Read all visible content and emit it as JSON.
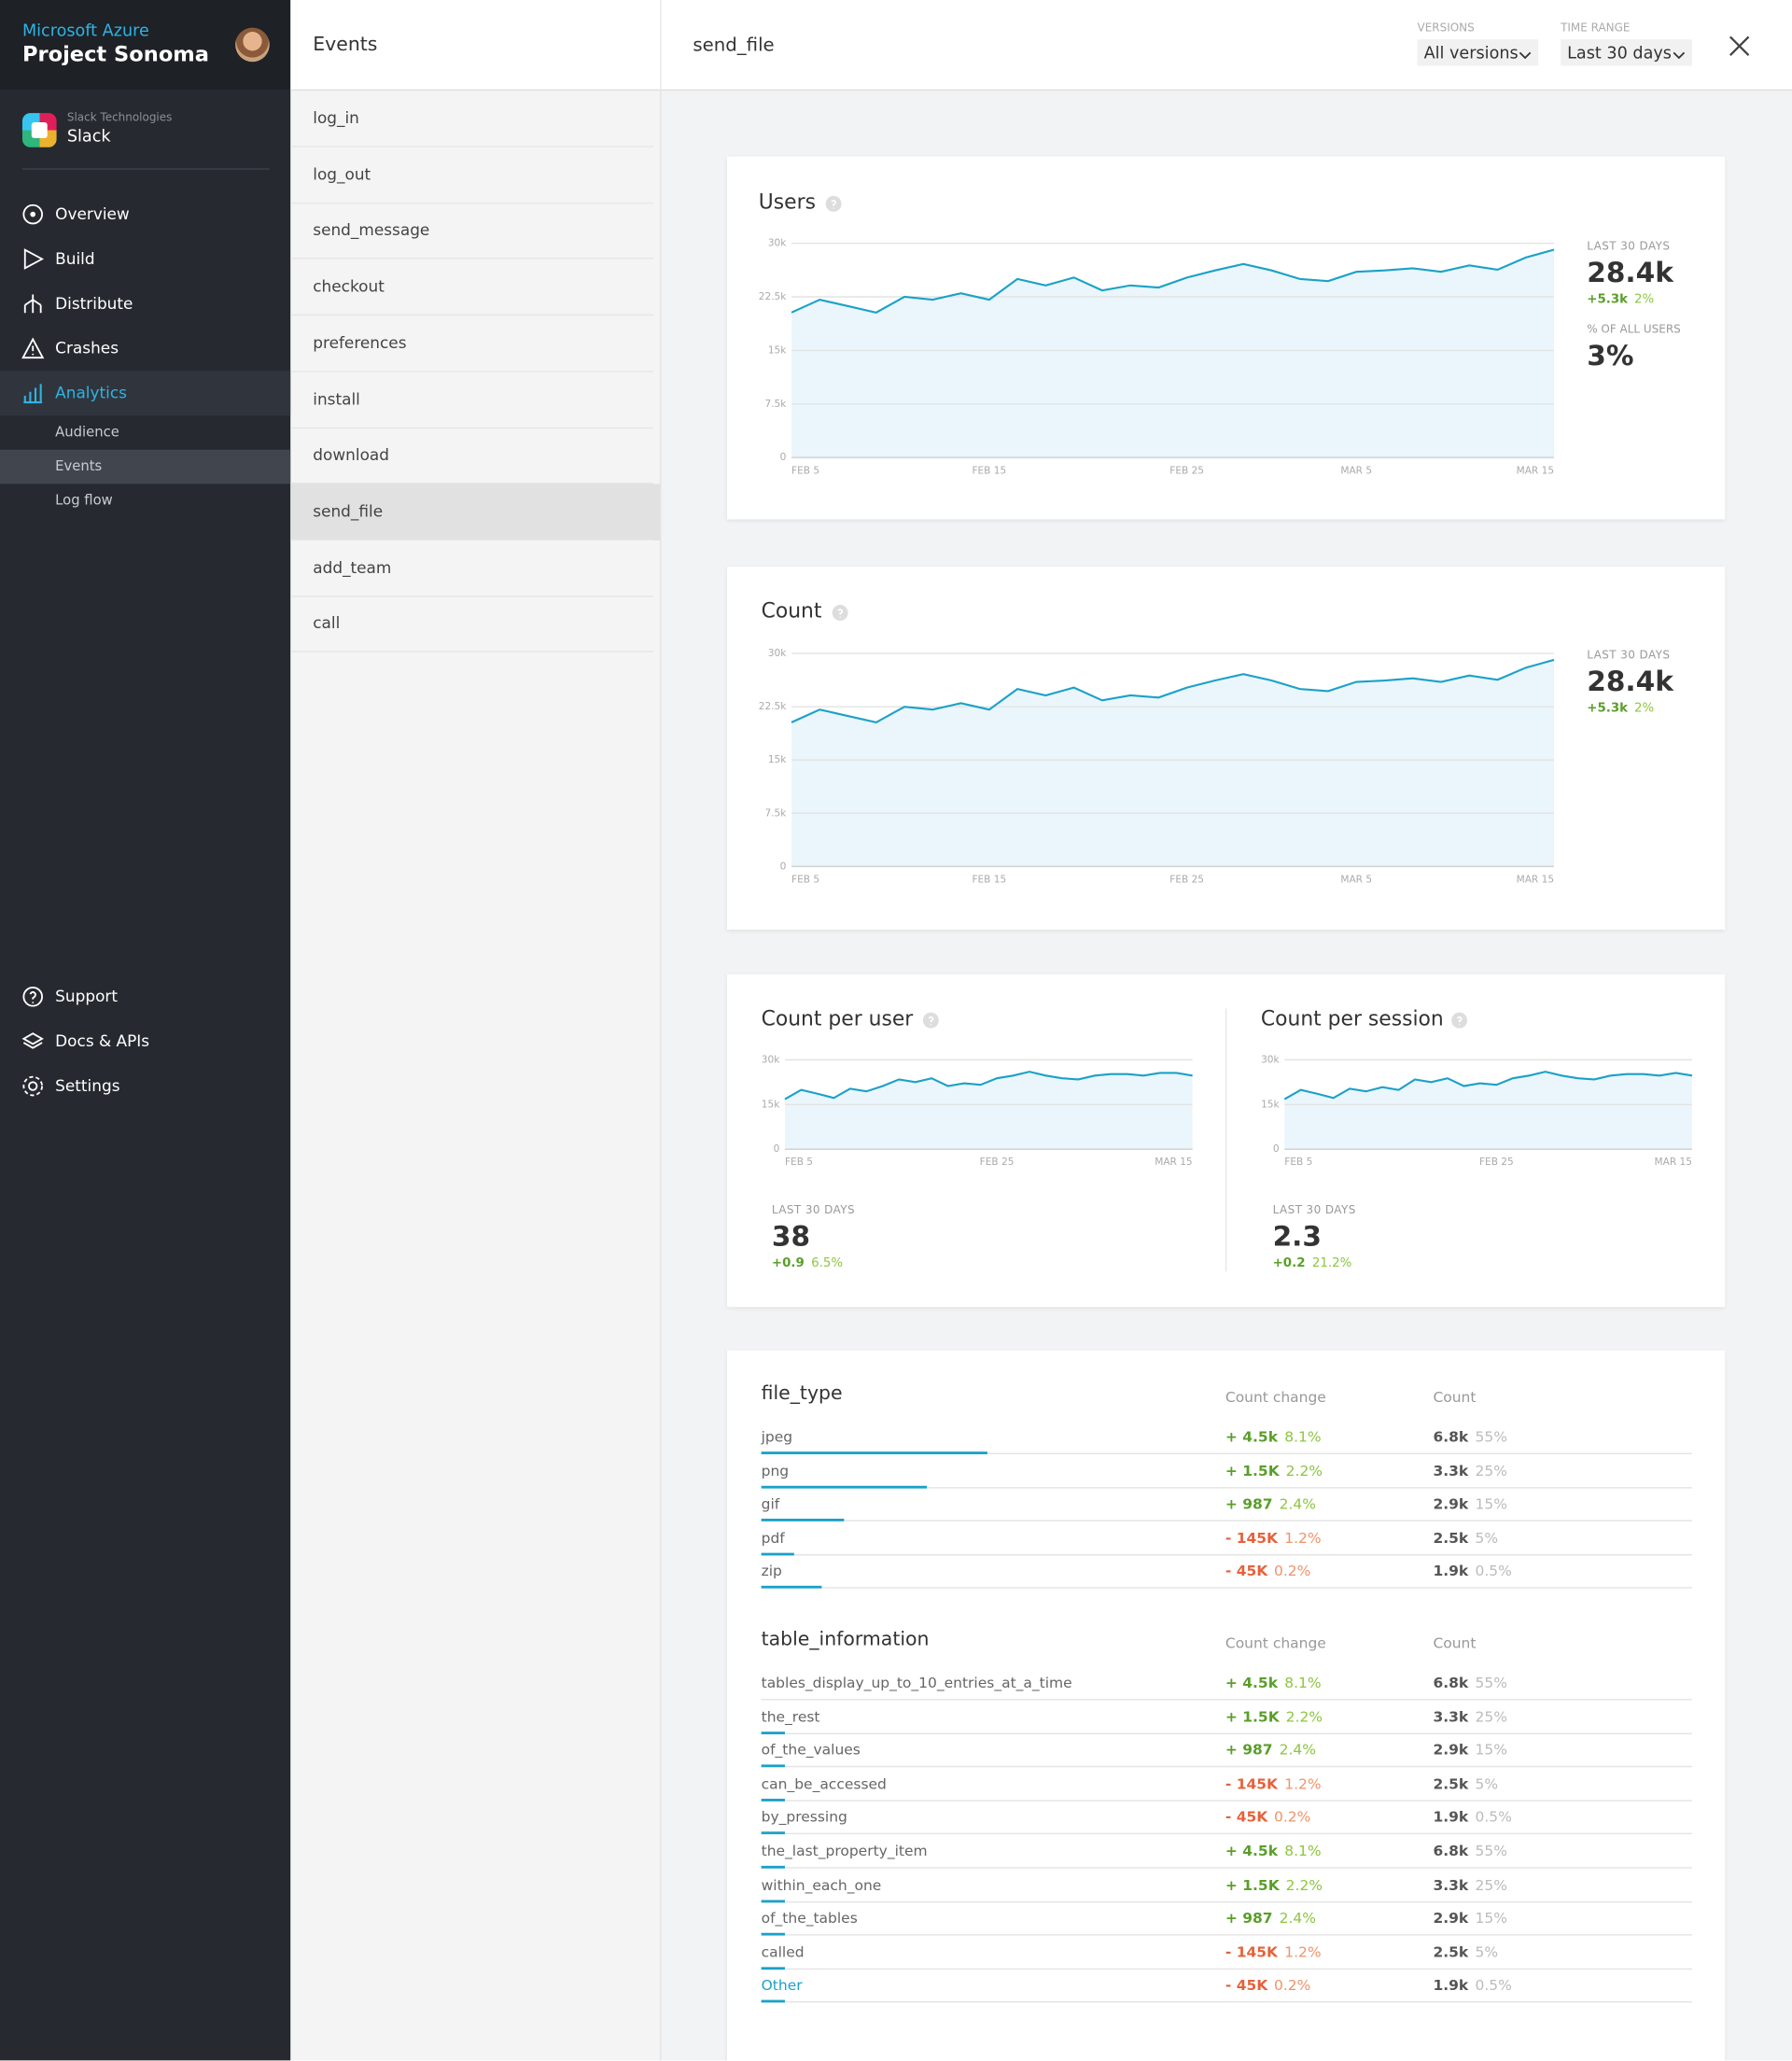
{
  "brand": {
    "product": "Microsoft Azure",
    "title": "Project Sonoma"
  },
  "app": {
    "org": "Slack Technologies",
    "name": "Slack"
  },
  "nav": {
    "items": [
      "Overview",
      "Build",
      "Distribute",
      "Crashes",
      "Analytics"
    ],
    "active": 4
  },
  "subnav": {
    "items": [
      "Audience",
      "Events",
      "Log flow"
    ],
    "active": 1
  },
  "bottom_nav": [
    "Support",
    "Docs & APIs",
    "Settings"
  ],
  "events": {
    "title": "Events",
    "items": [
      "log_in",
      "log_out",
      "send_message",
      "checkout",
      "preferences",
      "install",
      "download",
      "send_file",
      "add_team",
      "call"
    ],
    "selected": 7
  },
  "header": {
    "title": "send_file",
    "versions_label": "VERSIONS",
    "versions": "All versions",
    "range_label": "TIME RANGE",
    "range": "Last 30 days"
  },
  "users": {
    "title": "Users",
    "chart": {
      "type": "line",
      "color": "#1ba1c8",
      "values": [
        20300,
        22100,
        21200,
        20300,
        22500,
        22100,
        23000,
        22100,
        25000,
        24100,
        25200,
        23400,
        24100,
        23800,
        25200,
        26200,
        27100,
        26200,
        25000,
        24700,
        26000,
        26200,
        26500,
        26000,
        26900,
        26300,
        28000,
        29100
      ],
      "xlim": [
        0,
        27
      ],
      "xticks": [
        {
          "value": 0,
          "label": "FEB 5"
        },
        {
          "value": 7,
          "label": "FEB 15"
        },
        {
          "value": 14,
          "label": "FEB 25"
        },
        {
          "value": 20,
          "label": "MAR 5"
        },
        {
          "value": 27,
          "label": "MAR 15"
        }
      ],
      "ylim": [
        0,
        30000
      ],
      "yticks": [
        0,
        {
          "value": 7500,
          "label": "7.5k"
        },
        {
          "value": 15000,
          "label": "15k"
        },
        {
          "value": 22500,
          "label": "22.5k"
        },
        {
          "value": 30000,
          "label": "30k"
        }
      ],
      "grid": true
    },
    "stats": {
      "label": "LAST 30 DAYS",
      "value": "28.4k",
      "delta": "+5.3k",
      "delta_pct": "2%",
      "share_label": "% OF ALL USERS",
      "share": "3%"
    }
  },
  "count": {
    "title": "Count",
    "chart": {
      "type": "line",
      "color": "#1ba1c8",
      "values": [
        20300,
        22100,
        21200,
        20300,
        22500,
        22100,
        23000,
        22100,
        25000,
        24100,
        25200,
        23400,
        24100,
        23800,
        25200,
        26200,
        27100,
        26200,
        25000,
        24700,
        26000,
        26200,
        26500,
        26000,
        26900,
        26300,
        28000,
        29100
      ],
      "xlim": [
        0,
        27
      ],
      "xticks": [
        {
          "value": 0,
          "label": "FEB 5"
        },
        {
          "value": 7,
          "label": "FEB 15"
        },
        {
          "value": 14,
          "label": "FEB 25"
        },
        {
          "value": 20,
          "label": "MAR 5"
        },
        {
          "value": 27,
          "label": "MAR 15"
        }
      ],
      "ylim": [
        0,
        30000
      ],
      "yticks": [
        0,
        {
          "value": 7500,
          "label": "7.5k"
        },
        {
          "value": 15000,
          "label": "15k"
        },
        {
          "value": 22500,
          "label": "22.5k"
        },
        {
          "value": 30000,
          "label": "30k"
        }
      ],
      "grid": true
    },
    "stats": {
      "label": "LAST 30 DAYS",
      "value": "28.4k",
      "delta": "+5.3k",
      "delta_pct": "2%"
    }
  },
  "per_user": {
    "title": "Count per user",
    "chart": {
      "type": "line",
      "color": "#1ba1c8",
      "values": [
        16800,
        19900,
        18600,
        17200,
        20300,
        19400,
        21200,
        23400,
        22500,
        23800,
        21200,
        22100,
        21600,
        23800,
        24700,
        26000,
        24700,
        23800,
        23400,
        24700,
        25200,
        25200,
        24700,
        25600,
        25600,
        24700
      ],
      "xlim": [
        0,
        25
      ],
      "xticks": [
        {
          "value": 0,
          "label": "FEB 5"
        },
        {
          "value": 13,
          "label": "FEB 25"
        },
        {
          "value": 25,
          "label": "MAR 15"
        }
      ],
      "ylim": [
        0,
        30000
      ],
      "yticks": [
        0,
        {
          "value": 15000,
          "label": "15k"
        },
        {
          "value": 30000,
          "label": "30k"
        }
      ],
      "grid": true
    },
    "stats": {
      "label": "LAST 30 DAYS",
      "value": "38",
      "delta": "+0.9",
      "delta_pct": "6.5%"
    }
  },
  "per_session": {
    "title": "Count per session",
    "chart": {
      "type": "line",
      "color": "#1ba1c8",
      "values": [
        16800,
        19900,
        18600,
        17200,
        20300,
        19400,
        20800,
        19900,
        23400,
        22500,
        23800,
        21200,
        22100,
        21600,
        23800,
        24700,
        26000,
        24700,
        23800,
        23400,
        24700,
        25200,
        25200,
        24700,
        25600,
        24700
      ],
      "xlim": [
        0,
        25
      ],
      "xticks": [
        {
          "value": 0,
          "label": "FEB 5"
        },
        {
          "value": 13,
          "label": "FEB 25"
        },
        {
          "value": 25,
          "label": "MAR 15"
        }
      ],
      "ylim": [
        0,
        30000
      ],
      "yticks": [
        0,
        {
          "value": 15000,
          "label": "15k"
        },
        {
          "value": 30000,
          "label": "30k"
        }
      ],
      "grid": true
    },
    "stats": {
      "label": "LAST 30 DAYS",
      "value": "2.3",
      "delta": "+0.2",
      "delta_pct": "21.2%"
    }
  },
  "file_type": {
    "title": "file_type",
    "col_change": "Count change",
    "col_count": "Count",
    "bar_lim": [
      0,
      100
    ],
    "rows": [
      {
        "name": "jpeg",
        "change": "+ 4.5k",
        "change_pct": "8.1%",
        "count": "6.8k",
        "count_pct": "55%",
        "bar": 49
      },
      {
        "name": "png",
        "change": "+ 1.5K",
        "change_pct": "2.2%",
        "count": "3.3k",
        "count_pct": "25%",
        "bar": 36
      },
      {
        "name": "gif",
        "change": "+ 987",
        "change_pct": "2.4%",
        "count": "2.9k",
        "count_pct": "15%",
        "bar": 18
      },
      {
        "name": "pdf",
        "change": "- 145K",
        "change_pct": "1.2%",
        "count": "2.5k",
        "count_pct": "5%",
        "bar": 7
      },
      {
        "name": "zip",
        "change": "- 45K",
        "change_pct": "0.2%",
        "count": "1.9k",
        "count_pct": "0.5%",
        "bar": 13
      }
    ]
  },
  "table_information": {
    "title": "table_information",
    "col_change": "Count change",
    "col_count": "Count",
    "bar_lim": [
      0,
      100
    ],
    "link_row": 9,
    "rows": [
      {
        "name": "tables_display_up_to_10_entries_at_a_time",
        "change": "+ 4.5k",
        "change_pct": "8.1%",
        "count": "6.8k",
        "count_pct": "55%",
        "bar": 0
      },
      {
        "name": "the_rest",
        "change": "+ 1.5K",
        "change_pct": "2.2%",
        "count": "3.3k",
        "count_pct": "25%",
        "bar": 5
      },
      {
        "name": "of_the_values",
        "change": "+ 987",
        "change_pct": "2.4%",
        "count": "2.9k",
        "count_pct": "15%",
        "bar": 5
      },
      {
        "name": "can_be_accessed",
        "change": "- 145K",
        "change_pct": "1.2%",
        "count": "2.5k",
        "count_pct": "5%",
        "bar": 5
      },
      {
        "name": "by_pressing",
        "change": "- 45K",
        "change_pct": "0.2%",
        "count": "1.9k",
        "count_pct": "0.5%",
        "bar": 5
      },
      {
        "name": "the_last_property_item",
        "change": "+ 4.5k",
        "change_pct": "8.1%",
        "count": "6.8k",
        "count_pct": "55%",
        "bar": 5
      },
      {
        "name": "within_each_one",
        "change": "+ 1.5K",
        "change_pct": "2.2%",
        "count": "3.3k",
        "count_pct": "25%",
        "bar": 5
      },
      {
        "name": "of_the_tables",
        "change": "+ 987",
        "change_pct": "2.4%",
        "count": "2.9k",
        "count_pct": "15%",
        "bar": 5
      },
      {
        "name": "called",
        "change": "- 145K",
        "change_pct": "1.2%",
        "count": "2.5k",
        "count_pct": "5%",
        "bar": 5
      },
      {
        "name": "Other",
        "change": "- 45K",
        "change_pct": "0.2%",
        "count": "1.9k",
        "count_pct": "0.5%",
        "bar": 5
      }
    ]
  }
}
